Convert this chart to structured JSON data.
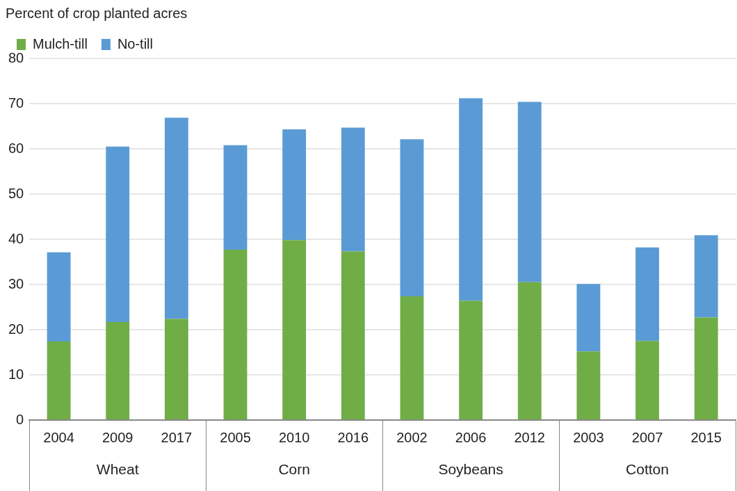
{
  "chart_data": {
    "type": "bar",
    "stacked": true,
    "ylabel": "Percent of crop planted acres",
    "categories": [
      "2004",
      "2009",
      "2017",
      "2005",
      "2010",
      "2016",
      "2002",
      "2006",
      "2012",
      "2003",
      "2007",
      "2015"
    ],
    "annotations": [
      "Wheat",
      "Corn",
      "Soybeans",
      "Cotton"
    ],
    "series": [
      {
        "name": "Mulch-till",
        "color": "#70ad47",
        "values": [
          17.4,
          21.7,
          22.4,
          37.7,
          39.8,
          37.3,
          27.4,
          26.4,
          30.5,
          15.2,
          17.5,
          22.7
        ]
      },
      {
        "name": "No-till",
        "color": "#5b9bd5",
        "values": [
          19.7,
          38.8,
          44.5,
          23.1,
          24.5,
          27.4,
          34.7,
          44.8,
          39.9,
          14.9,
          20.7,
          18.2
        ]
      }
    ],
    "ylim": [
      0,
      80
    ],
    "yticks": [
      0,
      10,
      20,
      30,
      40,
      50,
      60,
      70,
      80
    ],
    "grid": "y",
    "legend": "top left"
  }
}
